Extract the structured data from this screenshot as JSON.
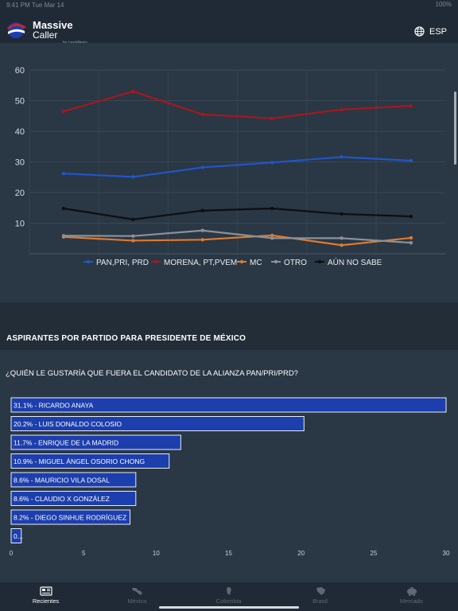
{
  "status": {
    "left": "9:41 PM  Tue Mar 14",
    "right": "100%"
  },
  "header": {
    "brand_line1": "Massive",
    "brand_line2": "Caller",
    "brand_sub": "by LexisNexis",
    "language": "ESP"
  },
  "colors": {
    "pan": "#1f56c8",
    "morena": "#a8171d",
    "mc": "#e07a2b",
    "otro": "#8a9198",
    "aun_no_sabe": "#0c0f12",
    "bar_fill": "#1d3fad"
  },
  "chart_data": [
    {
      "type": "line",
      "yticks": [
        10,
        20,
        30,
        40,
        50,
        60
      ],
      "ylim": [
        0,
        60
      ],
      "x": [
        1,
        2,
        3,
        4,
        5,
        6
      ],
      "grid": true,
      "legend_position": "bottom",
      "series": [
        {
          "name": "PAN,PRI, PRD",
          "color": "#1f56c8",
          "values": [
            26.2,
            25.1,
            28.2,
            29.8,
            31.6,
            30.4
          ]
        },
        {
          "name": "MORENA, PT,PVEM",
          "color": "#a8171d",
          "values": [
            46.5,
            53.0,
            45.5,
            44.2,
            47.1,
            48.3
          ]
        },
        {
          "name": "MC",
          "color": "#e07a2b",
          "values": [
            5.5,
            4.3,
            4.6,
            6.0,
            2.8,
            5.2
          ]
        },
        {
          "name": "OTRO",
          "color": "#8a9198",
          "values": [
            5.9,
            5.8,
            7.6,
            5.1,
            5.1,
            3.6
          ]
        },
        {
          "name": "AÚN NO SABE",
          "color": "#0c0f12",
          "values": [
            14.8,
            11.2,
            14.1,
            14.8,
            13.0,
            12.2
          ]
        }
      ]
    },
    {
      "type": "bar",
      "orientation": "horizontal",
      "xlim": [
        0,
        30
      ],
      "xticks": [
        0,
        5,
        10,
        15,
        20,
        25,
        30
      ],
      "title": "ASPIRANTES POR PARTIDO PARA PRESIDENTE DE MÉXICO",
      "question": "¿QUIÉN LE GUSTARÍA QUE FUERA EL CANDIDATO DE LA ALIANZA PAN/PRI/PRD?",
      "bars": [
        {
          "label": "31.1% - RICARDO ANAYA",
          "value": 31.1
        },
        {
          "label": "20.2% - LUIS DONALDO COLOSIO",
          "value": 20.2
        },
        {
          "label": "11.7% - ENRIQUE DE LA MADRID",
          "value": 11.7
        },
        {
          "label": "10.9% - MIGUEL ÁNGEL OSORIO CHONG",
          "value": 10.9
        },
        {
          "label": "8.6% - MAURICIO VILA DOSAL",
          "value": 8.6
        },
        {
          "label": "8.6% - CLAUDIO X GONZÁLEZ",
          "value": 8.6
        },
        {
          "label": "8.2% - DIEGO SINHUE RODRÍGUEZ",
          "value": 8.2
        },
        {
          "label": "0...",
          "value": 0.7
        }
      ]
    }
  ],
  "tabs": [
    {
      "label": "Recientes",
      "icon": "newspaper-icon",
      "active": true
    },
    {
      "label": "México",
      "icon": "mexico-map-icon",
      "active": false
    },
    {
      "label": "Colombia",
      "icon": "colombia-map-icon",
      "active": false
    },
    {
      "label": "Brasil",
      "icon": "brazil-map-icon",
      "active": false
    },
    {
      "label": "Mercado",
      "icon": "piggy-bank-icon",
      "active": false
    }
  ]
}
